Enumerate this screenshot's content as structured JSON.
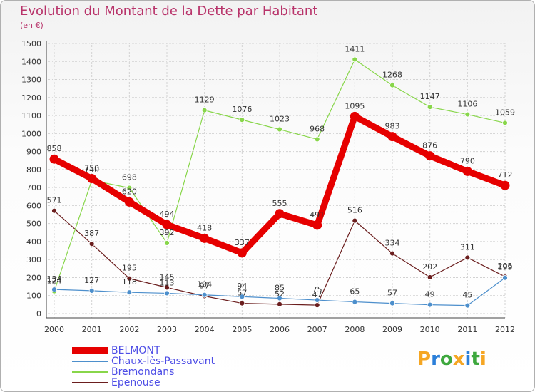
{
  "title": "Evolution du Montant de la Dette par Habitant",
  "subtitle": "(en €)",
  "logo": {
    "text": "Proxiti",
    "letters": [
      {
        "ch": "P",
        "color": "#f5a623"
      },
      {
        "ch": "r",
        "color": "#2b7fd9"
      },
      {
        "ch": "o",
        "color": "#3ea83e"
      },
      {
        "ch": "x",
        "color": "#f5a623"
      },
      {
        "ch": "i",
        "color": "#2b7fd9"
      },
      {
        "ch": "t",
        "color": "#3ea83e"
      },
      {
        "ch": "i",
        "color": "#f5a623"
      }
    ]
  },
  "chart_data": {
    "type": "line",
    "categories": [
      "2000",
      "2001",
      "2002",
      "2003",
      "2004",
      "2005",
      "2006",
      "2007",
      "2008",
      "2009",
      "2010",
      "2011",
      "2012"
    ],
    "yticks": [
      0,
      100,
      200,
      300,
      400,
      500,
      600,
      700,
      800,
      900,
      1000,
      1100,
      1200,
      1300,
      1400,
      1500
    ],
    "ylim": [
      0,
      1500
    ],
    "grid": true,
    "legend_position": "bottom-left",
    "series": [
      {
        "name": "BELMONT",
        "color": "#e60000",
        "values": [
          858,
          750,
          620,
          494,
          418,
          337,
          555,
          491,
          1095,
          983,
          876,
          790,
          712
        ],
        "labels": [
          "858",
          "750",
          "620",
          "494",
          "418",
          "337",
          "555",
          "491",
          "1095",
          "983",
          "876",
          "790",
          "712"
        ]
      },
      {
        "name": "Chaux-lès-Passavant",
        "color": "#4d8fcc",
        "values": [
          134,
          127,
          118,
          113,
          104,
          94,
          85,
          75,
          65,
          57,
          49,
          45,
          199
        ],
        "labels": [
          "134",
          "127",
          "118",
          "113",
          "104",
          "94",
          "85",
          "75",
          "65",
          "57",
          "49",
          "45",
          "199"
        ]
      },
      {
        "name": "Bremondans",
        "color": "#88d64a",
        "values": [
          124,
          740,
          698,
          392,
          1129,
          1076,
          1023,
          968,
          1411,
          1268,
          1147,
          1106,
          1059
        ],
        "labels": [
          "124",
          "740",
          "698",
          "392",
          "1129",
          "1076",
          "1023",
          "968",
          "1411",
          "1268",
          "1147",
          "1106",
          "1059"
        ]
      },
      {
        "name": "Epenouse",
        "color": "#6b1e1e",
        "values": [
          571,
          387,
          195,
          145,
          97,
          57,
          52,
          47,
          516,
          334,
          202,
          311,
          205
        ],
        "labels": [
          "571",
          "387",
          "195",
          "145",
          "97",
          "57",
          "52",
          "47",
          "516",
          "334",
          "202",
          "311",
          "205"
        ]
      }
    ]
  }
}
